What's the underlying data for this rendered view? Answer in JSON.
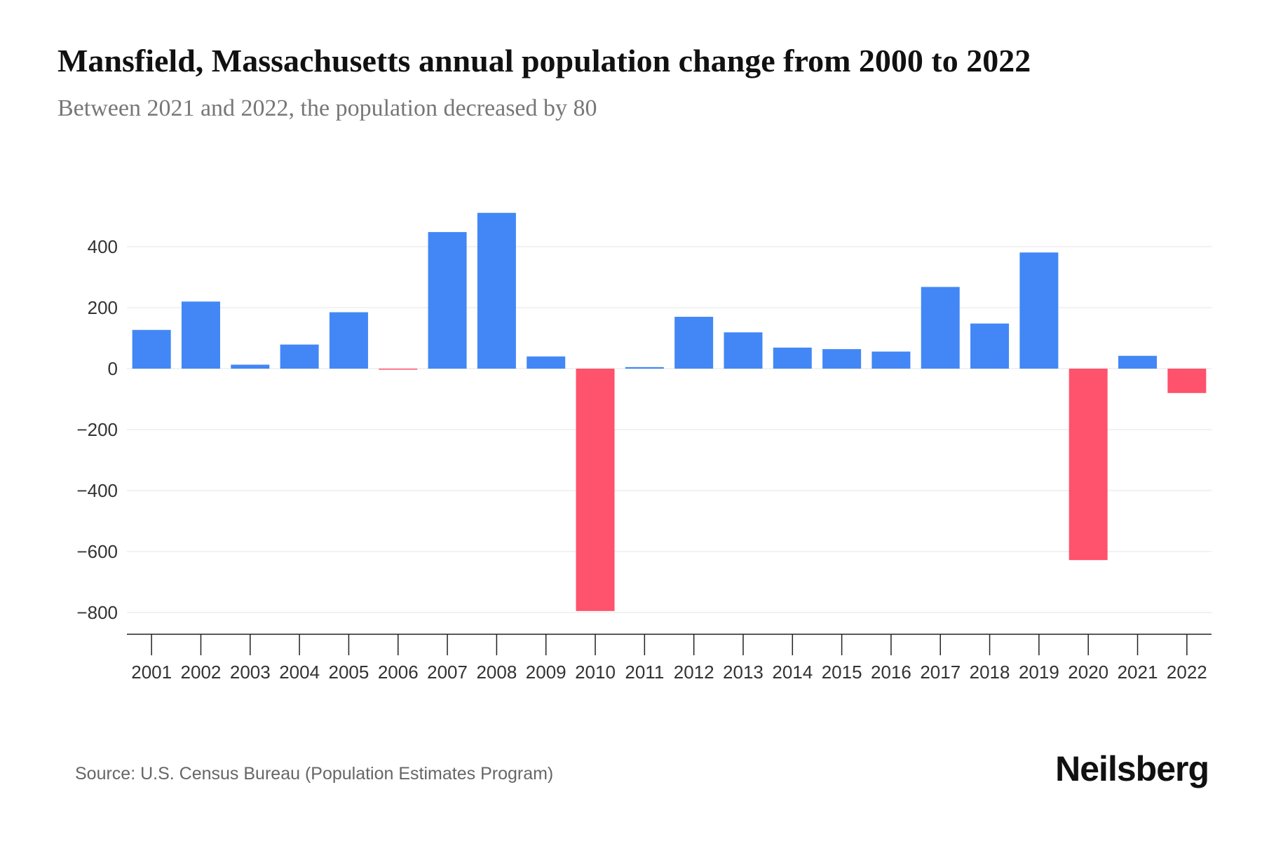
{
  "title": "Mansfield, Massachusetts annual population change from 2000 to 2022",
  "subtitle": "Between 2021 and 2022, the population decreased by 80",
  "source": "Source: U.S. Census Bureau (Population Estimates Program)",
  "logo": "Neilsberg",
  "colors": {
    "positive": "#4287f5",
    "negative": "#ff526c"
  },
  "chart_data": {
    "type": "bar",
    "title": "Mansfield, Massachusetts annual population change from 2000 to 2022",
    "xlabel": "",
    "ylabel": "",
    "categories": [
      "2001",
      "2002",
      "2003",
      "2004",
      "2005",
      "2006",
      "2007",
      "2008",
      "2009",
      "2010",
      "2011",
      "2012",
      "2013",
      "2014",
      "2015",
      "2016",
      "2017",
      "2018",
      "2019",
      "2020",
      "2021",
      "2022"
    ],
    "values": [
      127,
      220,
      13,
      79,
      185,
      -3,
      448,
      511,
      40,
      -795,
      5,
      170,
      119,
      69,
      64,
      56,
      268,
      148,
      381,
      -628,
      42,
      -80
    ],
    "yticks": [
      400,
      200,
      0,
      -200,
      -400,
      -600,
      -800
    ],
    "ytick_labels": [
      "400",
      "200",
      "0",
      "−200",
      "−400",
      "−600",
      "−800"
    ],
    "ylim": [
      -870,
      560
    ],
    "grid": true
  }
}
